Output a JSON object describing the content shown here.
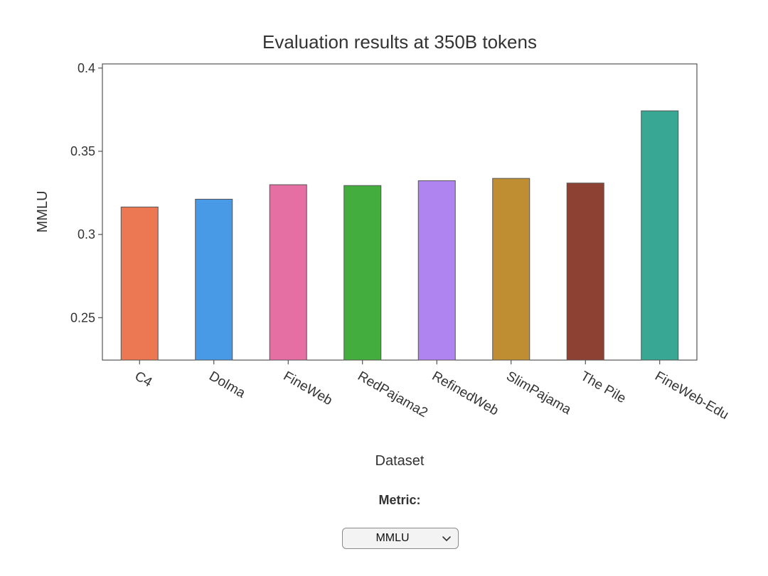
{
  "chart_data": {
    "type": "bar",
    "title": "Evaluation results at 350B tokens",
    "xlabel": "Dataset",
    "ylabel": "MMLU",
    "categories": [
      "C4",
      "Dolma",
      "FineWeb",
      "RedPajama2",
      "RefinedWeb",
      "SlimPajama",
      "The Pile",
      "FineWeb-Edu"
    ],
    "values": [
      0.3165,
      0.3212,
      0.3299,
      0.3294,
      0.3323,
      0.3337,
      0.3309,
      0.3743
    ],
    "colors": [
      "#ec7753",
      "#4899e6",
      "#e56fa2",
      "#43ae3e",
      "#b084f0",
      "#c08e32",
      "#8d4133",
      "#38a895"
    ],
    "ylim": [
      0.2245,
      0.4025
    ],
    "yticks": [
      0.25,
      0.3,
      0.35,
      0.4
    ],
    "ytick_labels": [
      "0.25",
      "0.3",
      "0.35",
      "0.4"
    ],
    "grid": false,
    "legend": "none"
  },
  "controls": {
    "metric_label": "Metric:",
    "metric_selected": "MMLU"
  }
}
